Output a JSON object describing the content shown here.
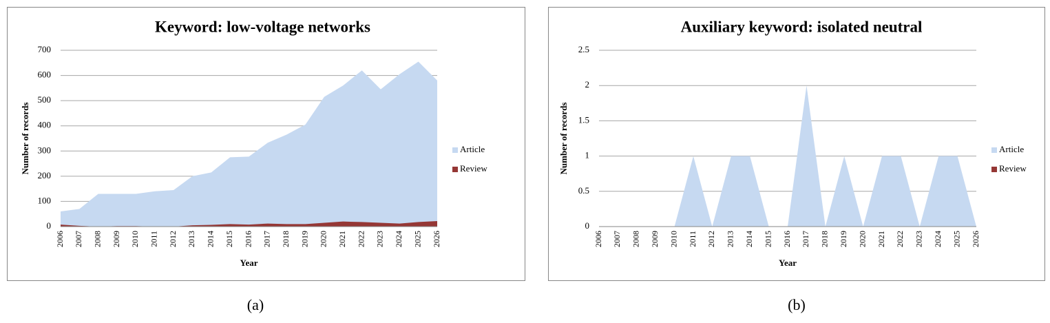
{
  "chart_data": [
    {
      "type": "area",
      "title": "Keyword: low-voltage networks",
      "x_label": "Year",
      "y_label": "Number of records",
      "caption": "(a)",
      "categories": [
        "2006",
        "2007",
        "2008",
        "2009",
        "2010",
        "2011",
        "2012",
        "2013",
        "2014",
        "2015",
        "2016",
        "2017",
        "2018",
        "2019",
        "2020",
        "2021",
        "2022",
        "2023",
        "2024",
        "2025",
        "2026"
      ],
      "series": [
        {
          "name": "Article",
          "color": "#c6d9f1",
          "values": [
            60,
            70,
            130,
            130,
            130,
            140,
            145,
            200,
            215,
            275,
            278,
            333,
            365,
            405,
            515,
            560,
            620,
            545,
            605,
            655,
            580
          ]
        },
        {
          "name": "Review",
          "color": "#953735",
          "values": [
            8,
            3,
            0,
            2,
            2,
            0,
            0,
            5,
            7,
            10,
            8,
            12,
            10,
            10,
            15,
            20,
            18,
            15,
            12,
            18,
            22
          ]
        }
      ],
      "ylim": [
        0,
        700
      ],
      "yticks": [
        0,
        100,
        200,
        300,
        400,
        500,
        600,
        700
      ],
      "grid": true,
      "legend": "right"
    },
    {
      "type": "area",
      "title": "Auxiliary keyword: isolated neutral",
      "x_label": "Year",
      "y_label": "Number of records",
      "caption": "(b)",
      "categories": [
        "2006",
        "2007",
        "2008",
        "2009",
        "2010",
        "2011",
        "2012",
        "2013",
        "2014",
        "2015",
        "2016",
        "2017",
        "2018",
        "2019",
        "2020",
        "2021",
        "2022",
        "2023",
        "2024",
        "2025",
        "2026"
      ],
      "series": [
        {
          "name": "Article",
          "color": "#c6d9f1",
          "values": [
            0,
            0,
            0,
            0,
            0,
            1,
            0,
            1,
            1,
            0,
            0,
            2,
            0,
            1,
            0,
            1,
            1,
            0,
            1,
            1,
            0
          ]
        },
        {
          "name": "Review",
          "color": "#953735",
          "values": [
            0,
            0,
            0,
            0,
            0,
            0,
            0,
            0,
            0,
            0,
            0,
            0,
            0,
            0,
            0,
            0,
            0,
            0,
            0,
            0,
            0
          ]
        }
      ],
      "ylim": [
        0,
        2.5
      ],
      "yticks": [
        0,
        0.5,
        1,
        1.5,
        2,
        2.5
      ],
      "grid": true,
      "legend": "right"
    }
  ]
}
